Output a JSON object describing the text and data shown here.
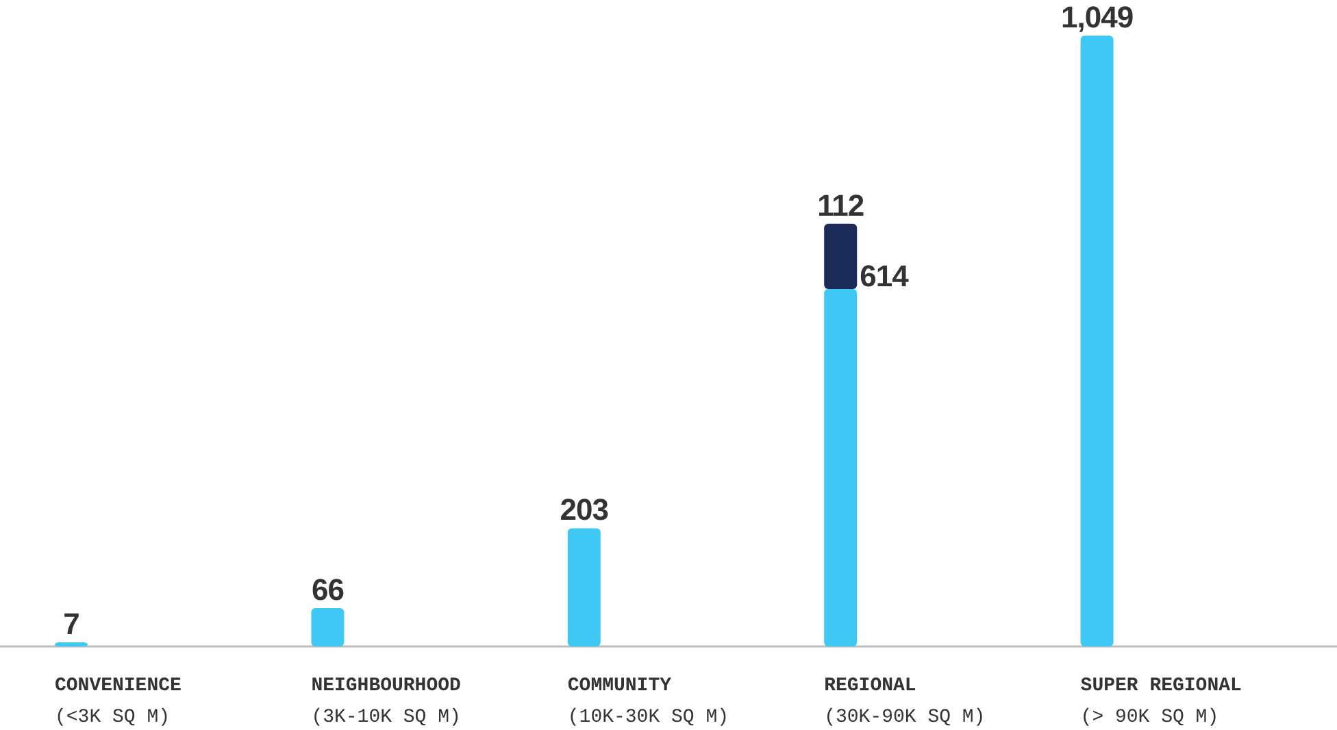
{
  "chart_data": {
    "type": "bar",
    "stacked": true,
    "categories": [
      "CONVENIENCE\n(<3K SQ M)",
      "NEIGHBOURHOOD\n(3K-10K SQ M)",
      "COMMUNITY\n(10K-30K SQ M)",
      "REGIONAL\n(30K-90K SQ M)",
      "SUPER REGIONAL\n(> 90K SQ M)"
    ],
    "series": [
      {
        "color": "#40c8f4",
        "values": [
          7,
          66,
          203,
          614,
          1049
        ],
        "value_labels": [
          "7",
          "66",
          "203",
          "614",
          "1,049"
        ]
      },
      {
        "color": "#1a2b5a",
        "values": [
          null,
          null,
          null,
          112,
          null
        ],
        "value_labels": [
          null,
          null,
          null,
          "112",
          null
        ]
      }
    ]
  }
}
